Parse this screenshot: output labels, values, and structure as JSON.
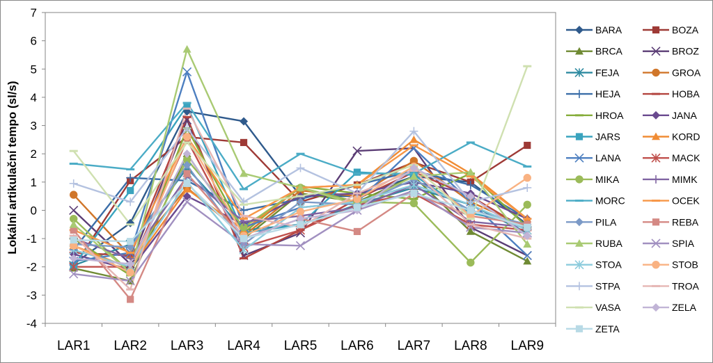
{
  "chart_data": {
    "type": "line",
    "title": "",
    "xlabel": "",
    "ylabel": "Lokální artikulační tempo (sl/s)",
    "categories": [
      "LAR1",
      "LAR2",
      "LAR3",
      "LAR4",
      "LAR5",
      "LAR6",
      "LAR7",
      "LAR8",
      "LAR9"
    ],
    "ylim": [
      -4,
      7
    ],
    "yticks": [
      -4,
      -3,
      -2,
      -1,
      0,
      1,
      2,
      3,
      4,
      5,
      6,
      7
    ],
    "grid": false,
    "legend": "right",
    "series": [
      {
        "name": "BARA",
        "color": "#2f5a8c",
        "marker": "diamond",
        "values": [
          -1.9,
          -0.45,
          3.5,
          3.15,
          0.5,
          0.5,
          1.2,
          1.0,
          -0.5
        ]
      },
      {
        "name": "BOZA",
        "color": "#9e3a36",
        "marker": "square",
        "values": [
          -2.0,
          1.05,
          2.6,
          2.4,
          0.3,
          0.9,
          1.7,
          1.0,
          2.3
        ]
      },
      {
        "name": "BRCA",
        "color": "#6f8a33",
        "marker": "triangle",
        "values": [
          -2.05,
          -2.5,
          2.0,
          -1.0,
          0.6,
          0.3,
          1.2,
          -0.75,
          -1.8
        ]
      },
      {
        "name": "BROZ",
        "color": "#5b3d75",
        "marker": "x",
        "values": [
          0.0,
          -1.9,
          3.2,
          -1.6,
          -0.8,
          2.1,
          2.2,
          -0.6,
          -1.6
        ]
      },
      {
        "name": "FEJA",
        "color": "#2e8aa0",
        "marker": "star",
        "values": [
          -1.95,
          -1.2,
          1.5,
          -0.7,
          -0.5,
          0.2,
          0.8,
          0.2,
          -0.8
        ]
      },
      {
        "name": "GROA",
        "color": "#d0762a",
        "marker": "circle",
        "values": [
          0.55,
          -1.6,
          0.8,
          -0.9,
          0.7,
          0.5,
          1.75,
          0.3,
          -0.6
        ]
      },
      {
        "name": "HEJA",
        "color": "#3b6ea8",
        "marker": "plus",
        "values": [
          -1.4,
          1.15,
          1.05,
          0.0,
          0.4,
          0.9,
          1.4,
          0.9,
          -0.3
        ]
      },
      {
        "name": "HOBA",
        "color": "#b3443f",
        "marker": "dash",
        "values": [
          -1.5,
          -1.6,
          3.3,
          -1.7,
          -0.7,
          0.4,
          1.35,
          0.5,
          -0.7
        ]
      },
      {
        "name": "HROA",
        "color": "#86ad3a",
        "marker": "dash",
        "values": [
          -1.0,
          -2.3,
          2.9,
          -0.8,
          0.85,
          0.6,
          0.4,
          1.3,
          -0.6
        ]
      },
      {
        "name": "JANA",
        "color": "#6a4a8f",
        "marker": "diamond",
        "values": [
          -1.55,
          -2.1,
          0.5,
          -0.5,
          0.5,
          0.6,
          1.0,
          0.6,
          -0.3
        ]
      },
      {
        "name": "JARS",
        "color": "#3aa3be",
        "marker": "square",
        "values": [
          -1.95,
          0.7,
          3.7,
          -0.8,
          -0.5,
          1.35,
          1.25,
          -0.1,
          -0.5
        ]
      },
      {
        "name": "KORD",
        "color": "#f08c34",
        "marker": "triangle",
        "values": [
          -1.25,
          -2.05,
          0.75,
          -0.7,
          0.8,
          0.9,
          2.5,
          1.3,
          -0.3
        ]
      },
      {
        "name": "LANA",
        "color": "#4d7fc0",
        "marker": "x",
        "values": [
          -1.8,
          -1.5,
          4.9,
          -0.6,
          0.1,
          0.3,
          2.2,
          0.3,
          -1.6
        ]
      },
      {
        "name": "MACK",
        "color": "#c0504d",
        "marker": "star",
        "values": [
          -2.0,
          -2.0,
          2.5,
          -1.3,
          -0.7,
          0.2,
          0.6,
          -0.5,
          -0.7
        ]
      },
      {
        "name": "MIKA",
        "color": "#9bbb59",
        "marker": "circle",
        "values": [
          -0.3,
          -2.2,
          1.8,
          -0.6,
          0.8,
          0.3,
          0.25,
          -1.85,
          0.2
        ]
      },
      {
        "name": "MIMK",
        "color": "#8064a2",
        "marker": "plus",
        "values": [
          -1.0,
          -1.7,
          1.2,
          -0.4,
          -0.2,
          0.1,
          0.9,
          -0.4,
          -0.6
        ]
      },
      {
        "name": "MORC",
        "color": "#4bacc6",
        "marker": "dash",
        "values": [
          1.65,
          1.45,
          3.8,
          0.75,
          2.0,
          1.3,
          1.3,
          2.4,
          1.55
        ]
      },
      {
        "name": "OCEK",
        "color": "#f79646",
        "marker": "dash",
        "values": [
          -0.7,
          -1.5,
          2.6,
          -0.3,
          0.8,
          0.9,
          2.3,
          1.2,
          -0.3
        ]
      },
      {
        "name": "PILA",
        "color": "#7c9ac7",
        "marker": "diamond",
        "values": [
          -1.2,
          -1.3,
          1.6,
          -1.2,
          0.3,
          0.2,
          1.1,
          0.0,
          -0.5
        ]
      },
      {
        "name": "REBA",
        "color": "#d48984",
        "marker": "square",
        "values": [
          -0.7,
          -3.15,
          1.3,
          -1.0,
          -0.3,
          -0.75,
          0.6,
          -0.2,
          -0.5
        ]
      },
      {
        "name": "RUBA",
        "color": "#a9ca73",
        "marker": "triangle",
        "values": [
          -0.5,
          -2.2,
          5.7,
          1.3,
          0.8,
          0.2,
          1.2,
          1.35,
          -1.2
        ]
      },
      {
        "name": "SPIA",
        "color": "#a190c0",
        "marker": "x",
        "values": [
          -2.25,
          -2.5,
          0.3,
          -1.2,
          -1.25,
          0.0,
          0.7,
          -0.6,
          -0.8
        ]
      },
      {
        "name": "STOA",
        "color": "#8ccbdc",
        "marker": "star",
        "values": [
          -1.4,
          -2.0,
          1.0,
          -1.4,
          0.1,
          0.3,
          0.9,
          0.2,
          -0.7
        ]
      },
      {
        "name": "STOB",
        "color": "#f9b282",
        "marker": "circle",
        "values": [
          -1.25,
          -2.2,
          2.6,
          -0.9,
          -0.05,
          0.4,
          1.55,
          -0.2,
          1.15
        ]
      },
      {
        "name": "STPA",
        "color": "#b4c2e0",
        "marker": "plus",
        "values": [
          0.95,
          0.3,
          2.9,
          0.3,
          1.5,
          0.6,
          2.8,
          0.3,
          0.8
        ]
      },
      {
        "name": "TROA",
        "color": "#e5b6b4",
        "marker": "dash",
        "values": [
          -0.9,
          -2.8,
          3.6,
          -0.2,
          -0.6,
          0.6,
          1.4,
          -0.5,
          -1.0
        ]
      },
      {
        "name": "VASA",
        "color": "#cfe0b0",
        "marker": "dash",
        "values": [
          2.1,
          -0.5,
          2.4,
          0.2,
          0.5,
          0.9,
          1.6,
          -0.3,
          5.1
        ]
      },
      {
        "name": "ZELA",
        "color": "#c1b4d6",
        "marker": "diamond",
        "values": [
          -1.7,
          -1.9,
          2.0,
          -1.0,
          -0.3,
          0.0,
          1.5,
          0.5,
          -0.9
        ]
      },
      {
        "name": "ZETA",
        "color": "#b8dae6",
        "marker": "square",
        "values": [
          -1.05,
          -1.1,
          0.95,
          -1.0,
          -0.5,
          0.1,
          0.6,
          0.0,
          -0.6
        ]
      }
    ]
  }
}
